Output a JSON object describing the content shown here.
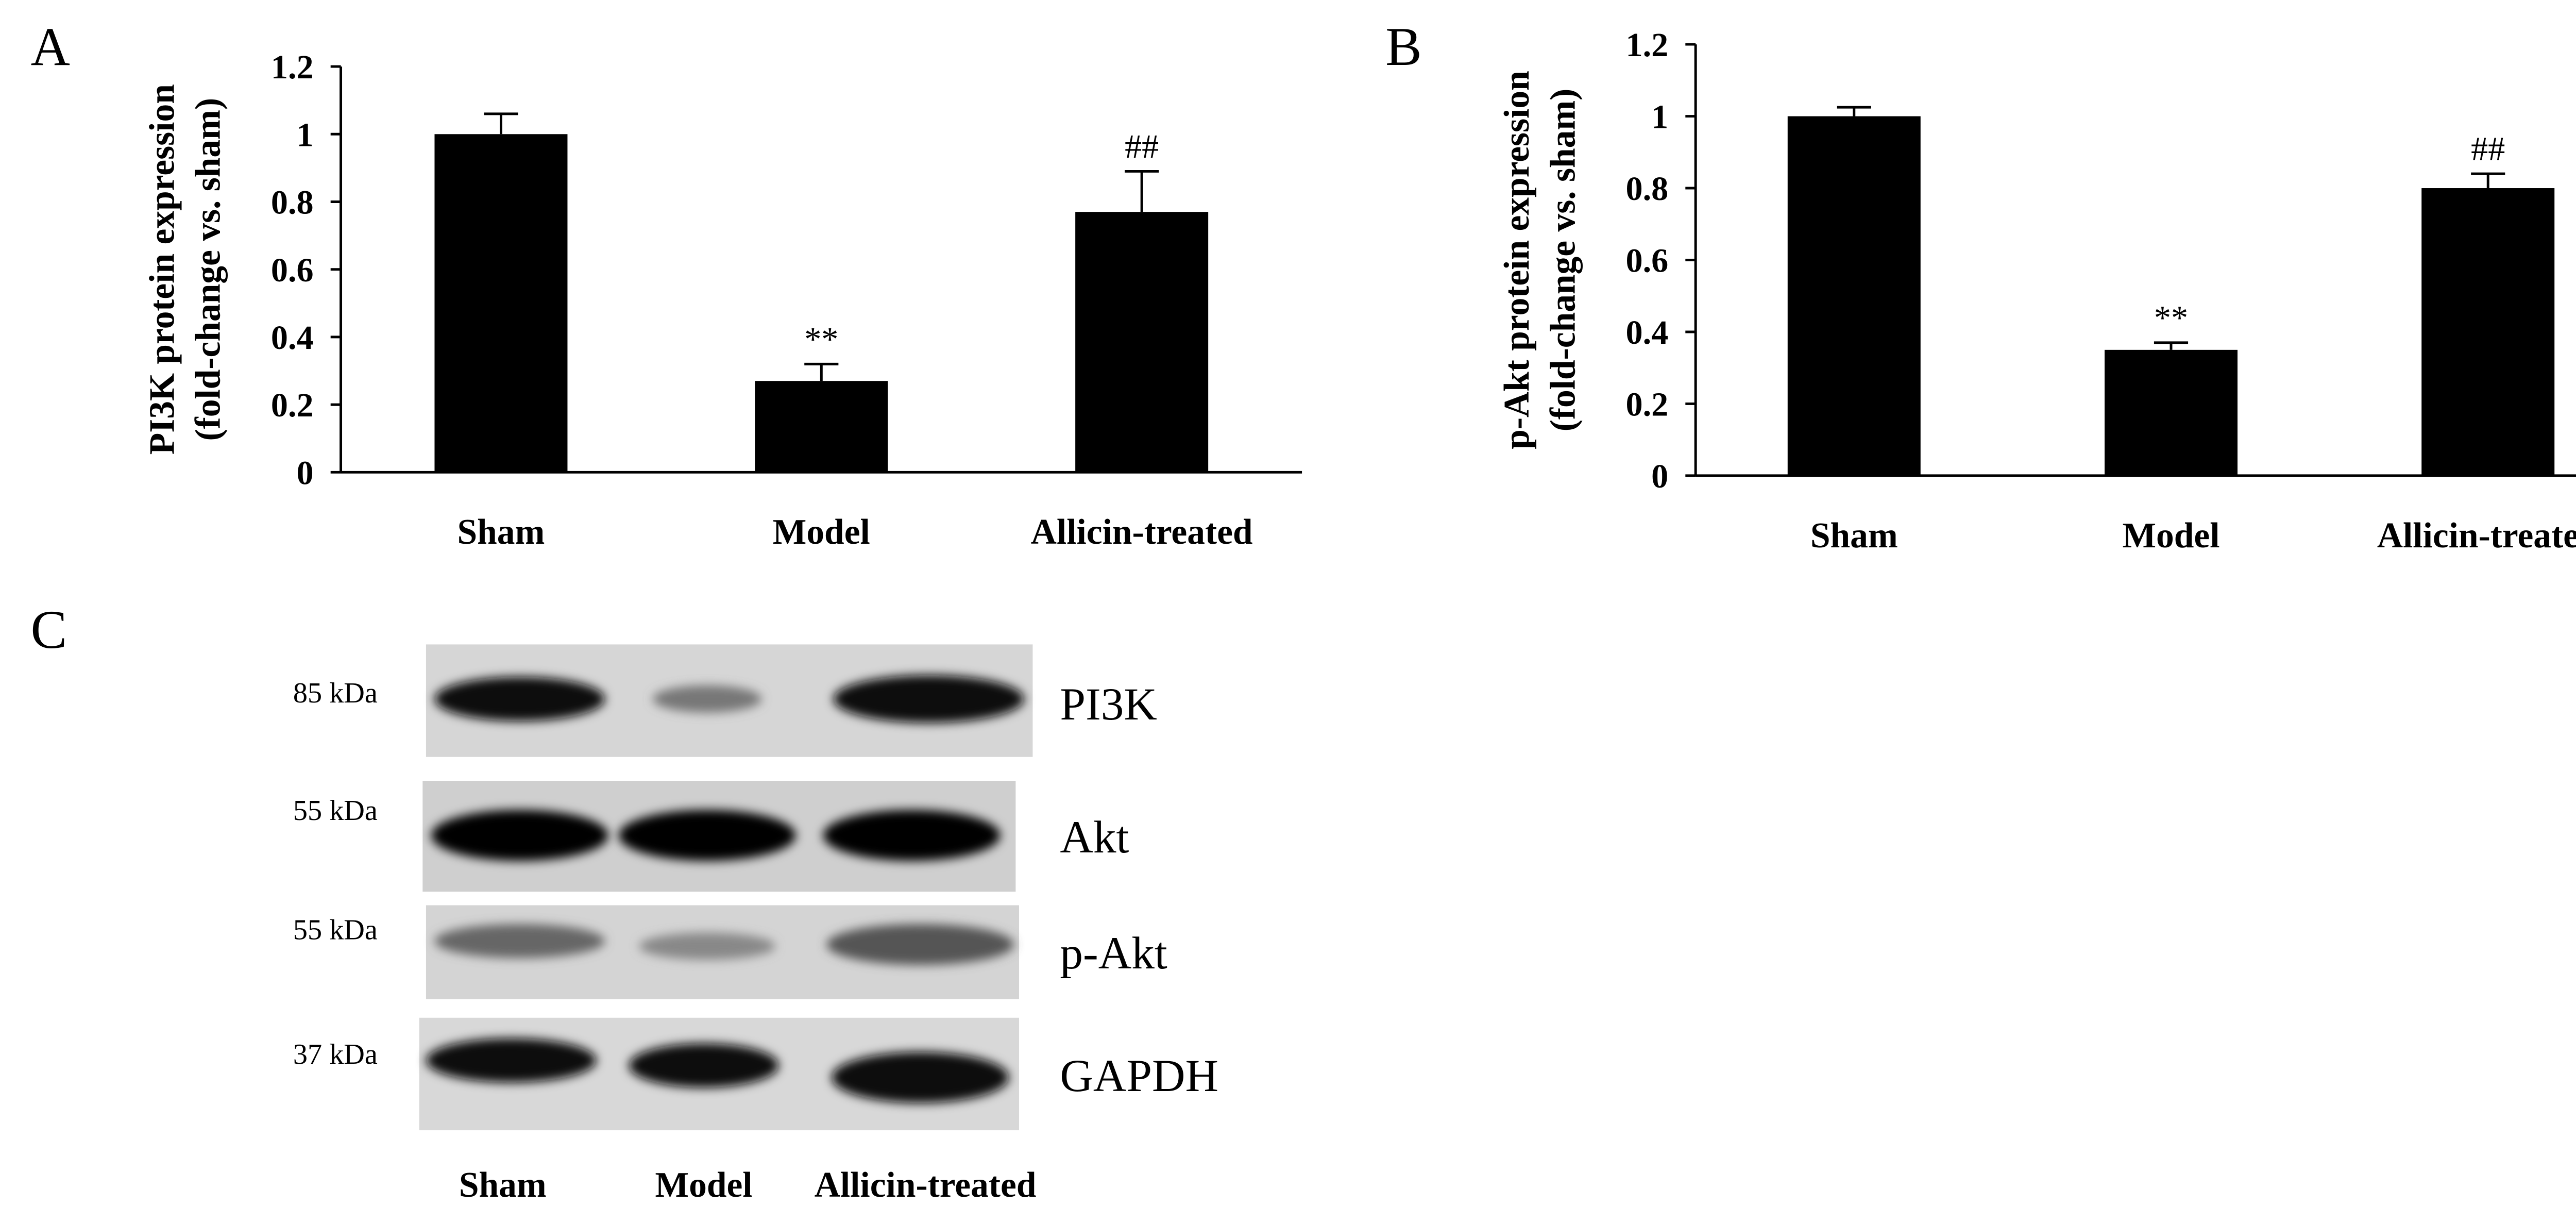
{
  "chart_data": [
    {
      "type": "bar",
      "panel": "A",
      "ylabel": [
        "PI3K protein expression",
        "(fold-change vs. sham)"
      ],
      "categories": [
        "Sham",
        "Model",
        "Allicin-treated"
      ],
      "values": [
        1.0,
        0.27,
        0.77
      ],
      "errors": [
        0.06,
        0.05,
        0.12
      ],
      "annotations": [
        null,
        "**",
        "##"
      ],
      "color": "#000000",
      "ylim": [
        0,
        1.2
      ],
      "yticks": [
        0,
        0.2,
        0.4,
        0.6,
        0.8,
        1,
        1.2
      ]
    },
    {
      "type": "bar",
      "panel": "B",
      "ylabel": [
        "p-Akt protein expression",
        "(fold-change vs. sham)"
      ],
      "categories": [
        "Sham",
        "Model",
        "Allicin-treated"
      ],
      "values": [
        1.0,
        0.35,
        0.8
      ],
      "errors": [
        0.025,
        0.02,
        0.04
      ],
      "annotations": [
        null,
        "**",
        "##"
      ],
      "color": "#000000",
      "ylim": [
        0,
        1.2
      ],
      "yticks": [
        0,
        0.2,
        0.4,
        0.6,
        0.8,
        1,
        1.2
      ]
    }
  ],
  "blot": {
    "panel": "C",
    "rows": [
      {
        "weight": "85 kDa",
        "protein": "PI3K"
      },
      {
        "weight": "55 kDa",
        "protein": "Akt"
      },
      {
        "weight": "55 kDa",
        "protein": "p-Akt"
      },
      {
        "weight": "37 kDa",
        "protein": "GAPDH"
      }
    ],
    "lanes": [
      "Sham",
      "Model",
      "Allicin-treated"
    ]
  }
}
